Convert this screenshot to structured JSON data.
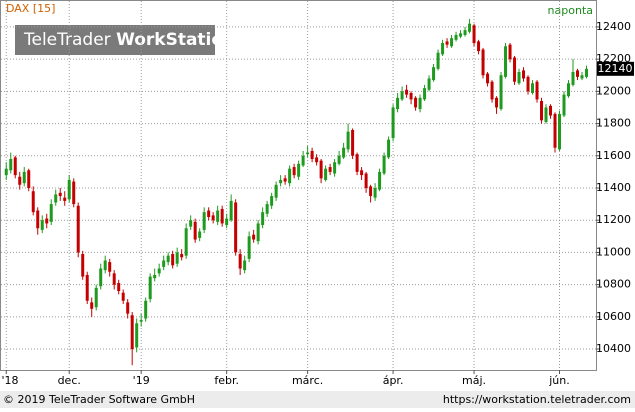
{
  "chart_data": {
    "type": "candlestick",
    "title": "DAX [15]",
    "period": "naponta",
    "logo_text": [
      "TeleTrader ",
      "WorkStation"
    ],
    "footer_left": "© 2019 TeleTrader Software GmbH",
    "footer_right": "https://workstation.teletrader.com",
    "last_value": 12140,
    "up_color": "#1e9a1e",
    "down_color": "#c40000",
    "ylim": [
      10270,
      12561
    ],
    "yticks": [
      10400,
      10600,
      10800,
      11000,
      11200,
      11400,
      11600,
      11800,
      12000,
      12200,
      12400
    ],
    "xlim": [
      -0.5,
      130
    ],
    "xticks": [
      {
        "value": 0,
        "label": "'18"
      },
      {
        "value": 14,
        "label": "dec."
      },
      {
        "value": 30,
        "label": "'19"
      },
      {
        "value": 49,
        "label": "febr."
      },
      {
        "value": 67,
        "label": "márc."
      },
      {
        "value": 86,
        "label": "ápr."
      },
      {
        "value": 104,
        "label": "máj."
      },
      {
        "value": 123,
        "label": "jún."
      }
    ],
    "grid": true,
    "ohlc": [
      [
        11480,
        11560,
        11450,
        11520
      ],
      [
        11510,
        11620,
        11490,
        11580
      ],
      [
        11590,
        11600,
        11460,
        11480
      ],
      [
        11470,
        11500,
        11390,
        11420
      ],
      [
        11430,
        11530,
        11410,
        11500
      ],
      [
        11510,
        11520,
        11380,
        11400
      ],
      [
        11380,
        11410,
        11230,
        11250
      ],
      [
        11260,
        11280,
        11110,
        11150
      ],
      [
        11140,
        11230,
        11120,
        11200
      ],
      [
        11210,
        11240,
        11150,
        11180
      ],
      [
        11190,
        11330,
        11170,
        11300
      ],
      [
        11310,
        11390,
        11290,
        11360
      ],
      [
        11370,
        11400,
        11320,
        11350
      ],
      [
        11340,
        11380,
        11290,
        11320
      ],
      [
        11330,
        11480,
        11310,
        11450
      ],
      [
        11440,
        11460,
        11280,
        11300
      ],
      [
        11290,
        11310,
        10970,
        11000
      ],
      [
        10990,
        11010,
        10830,
        10850
      ],
      [
        10860,
        10880,
        10680,
        10700
      ],
      [
        10690,
        10720,
        10600,
        10650
      ],
      [
        10660,
        10800,
        10640,
        10780
      ],
      [
        10790,
        10930,
        10770,
        10900
      ],
      [
        10890,
        10980,
        10870,
        10950
      ],
      [
        10940,
        10960,
        10850,
        10880
      ],
      [
        10870,
        10890,
        10770,
        10800
      ],
      [
        10810,
        10830,
        10740,
        10760
      ],
      [
        10750,
        10770,
        10680,
        10700
      ],
      [
        10690,
        10710,
        10590,
        10620
      ],
      [
        10610,
        10630,
        10300,
        10400
      ],
      [
        10410,
        10590,
        10380,
        10560
      ],
      [
        10570,
        10620,
        10540,
        10580
      ],
      [
        10590,
        10720,
        10570,
        10700
      ],
      [
        10710,
        10870,
        10690,
        10850
      ],
      [
        10840,
        10900,
        10820,
        10860
      ],
      [
        10870,
        10930,
        10850,
        10900
      ],
      [
        10910,
        10980,
        10890,
        10950
      ],
      [
        10940,
        11000,
        10920,
        10980
      ],
      [
        10990,
        11010,
        10900,
        10920
      ],
      [
        10930,
        11030,
        10910,
        11000
      ],
      [
        10990,
        11020,
        10950,
        10970
      ],
      [
        10980,
        11180,
        10960,
        11150
      ],
      [
        11160,
        11230,
        11140,
        11200
      ],
      [
        11190,
        11210,
        11060,
        11080
      ],
      [
        11090,
        11150,
        11070,
        11130
      ],
      [
        11140,
        11280,
        11120,
        11250
      ],
      [
        11260,
        11280,
        11200,
        11220
      ],
      [
        11230,
        11250,
        11180,
        11200
      ],
      [
        11190,
        11290,
        11170,
        11260
      ],
      [
        11270,
        11290,
        11160,
        11180
      ],
      [
        11170,
        11240,
        11150,
        11210
      ],
      [
        11200,
        11360,
        11190,
        11320
      ],
      [
        11310,
        11330,
        10980,
        11000
      ],
      [
        10990,
        11020,
        10860,
        10900
      ],
      [
        10890,
        10980,
        10870,
        10950
      ],
      [
        10960,
        11130,
        10940,
        11100
      ],
      [
        11110,
        11140,
        11060,
        11080
      ],
      [
        11070,
        11200,
        11050,
        11180
      ],
      [
        11170,
        11280,
        11150,
        11250
      ],
      [
        11240,
        11320,
        11220,
        11300
      ],
      [
        11290,
        11370,
        11270,
        11350
      ],
      [
        11340,
        11440,
        11320,
        11420
      ],
      [
        11430,
        11480,
        11410,
        11450
      ],
      [
        11460,
        11480,
        11420,
        11440
      ],
      [
        11430,
        11540,
        11410,
        11520
      ],
      [
        11530,
        11550,
        11460,
        11480
      ],
      [
        11470,
        11570,
        11450,
        11550
      ],
      [
        11540,
        11630,
        11530,
        11600
      ],
      [
        11610,
        11660,
        11590,
        11620
      ],
      [
        11630,
        11650,
        11560,
        11580
      ],
      [
        11590,
        11610,
        11540,
        11560
      ],
      [
        11570,
        11580,
        11430,
        11460
      ],
      [
        11450,
        11540,
        11440,
        11520
      ],
      [
        11530,
        11550,
        11480,
        11500
      ],
      [
        11490,
        11580,
        11470,
        11560
      ],
      [
        11550,
        11630,
        11540,
        11600
      ],
      [
        11590,
        11680,
        11580,
        11650
      ],
      [
        11640,
        11800,
        11620,
        11750
      ],
      [
        11760,
        11770,
        11580,
        11600
      ],
      [
        11610,
        11620,
        11480,
        11500
      ],
      [
        11510,
        11530,
        11450,
        11480
      ],
      [
        11490,
        11500,
        11370,
        11400
      ],
      [
        11410,
        11420,
        11310,
        11350
      ],
      [
        11340,
        11430,
        11320,
        11400
      ],
      [
        11390,
        11520,
        11380,
        11500
      ],
      [
        11490,
        11620,
        11480,
        11600
      ],
      [
        11590,
        11720,
        11580,
        11700
      ],
      [
        11710,
        11920,
        11690,
        11900
      ],
      [
        11890,
        11990,
        11870,
        11960
      ],
      [
        11950,
        12030,
        11940,
        12000
      ],
      [
        12010,
        12040,
        11960,
        11980
      ],
      [
        11990,
        12000,
        11920,
        11950
      ],
      [
        11960,
        11970,
        11880,
        11900
      ],
      [
        11890,
        11980,
        11870,
        11960
      ],
      [
        11950,
        12040,
        11940,
        12020
      ],
      [
        12010,
        12100,
        12000,
        12080
      ],
      [
        12070,
        12170,
        12060,
        12150
      ],
      [
        12140,
        12260,
        12130,
        12240
      ],
      [
        12230,
        12320,
        12220,
        12300
      ],
      [
        12310,
        12330,
        12270,
        12290
      ],
      [
        12280,
        12350,
        12270,
        12330
      ],
      [
        12320,
        12370,
        12310,
        12350
      ],
      [
        12340,
        12380,
        12330,
        12360
      ],
      [
        12350,
        12400,
        12340,
        12380
      ],
      [
        12370,
        12450,
        12360,
        12420
      ],
      [
        12410,
        12420,
        12280,
        12300
      ],
      [
        12310,
        12320,
        12230,
        12250
      ],
      [
        12260,
        12270,
        12080,
        12100
      ],
      [
        12110,
        12120,
        12030,
        12050
      ],
      [
        12060,
        12070,
        11930,
        11950
      ],
      [
        11960,
        11970,
        11860,
        11900
      ],
      [
        11890,
        12120,
        11880,
        12100
      ],
      [
        12090,
        12300,
        12080,
        12280
      ],
      [
        12290,
        12300,
        12180,
        12200
      ],
      [
        12210,
        12220,
        12040,
        12060
      ],
      [
        12050,
        12140,
        12040,
        12120
      ],
      [
        12130,
        12150,
        12060,
        12080
      ],
      [
        12090,
        12100,
        11980,
        12000
      ],
      [
        11990,
        12070,
        11980,
        12050
      ],
      [
        12060,
        12070,
        11930,
        11950
      ],
      [
        11940,
        11960,
        11800,
        11820
      ],
      [
        11810,
        11920,
        11800,
        11900
      ],
      [
        11910,
        11920,
        11830,
        11850
      ],
      [
        11860,
        11870,
        11620,
        11650
      ],
      [
        11640,
        11880,
        11630,
        11860
      ],
      [
        11850,
        12000,
        11840,
        11980
      ],
      [
        11970,
        12070,
        11960,
        12050
      ],
      [
        12040,
        12200,
        12030,
        12120
      ],
      [
        12130,
        12140,
        12070,
        12090
      ],
      [
        12080,
        12120,
        12070,
        12100
      ],
      [
        12090,
        12160,
        12080,
        12140
      ]
    ]
  }
}
